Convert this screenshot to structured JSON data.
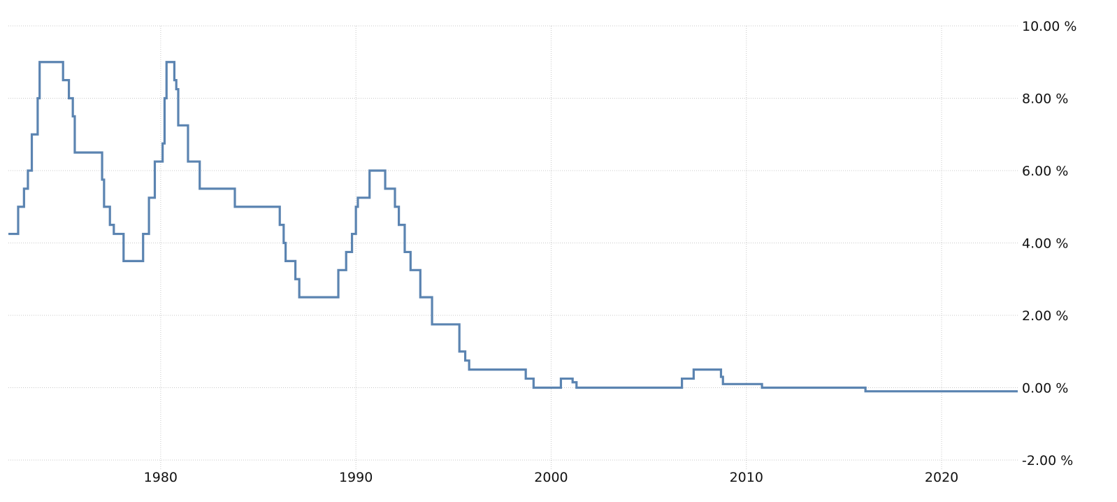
{
  "chart_data": {
    "type": "line",
    "title": "",
    "xlabel": "",
    "ylabel": "",
    "xlim": [
      1972.2,
      2023.9
    ],
    "ylim": [
      -2,
      10
    ],
    "x_ticks": [
      1980,
      1990,
      2000,
      2010,
      2020
    ],
    "x_tick_labels": [
      "1980",
      "1990",
      "2000",
      "2010",
      "2020"
    ],
    "y_ticks": [
      10,
      8,
      6,
      4,
      2,
      0,
      -2
    ],
    "y_tick_labels": [
      "10.00 %",
      "8.00 %",
      "6.00 %",
      "4.00 %",
      "2.00 %",
      "0.00 %",
      "-2.00 %"
    ],
    "grid": true,
    "legend": "none",
    "line_style": "step",
    "colors": {
      "series": "#5b84b1",
      "grid": "#c8c8c8",
      "text": "#111111"
    },
    "series": [
      {
        "values": [
          [
            1972.2,
            4.25
          ],
          [
            1972.7,
            5.0
          ],
          [
            1973.0,
            5.5
          ],
          [
            1973.2,
            6.0
          ],
          [
            1973.4,
            7.0
          ],
          [
            1973.7,
            8.0
          ],
          [
            1973.8,
            9.0
          ],
          [
            1975.0,
            8.5
          ],
          [
            1975.3,
            8.0
          ],
          [
            1975.5,
            7.5
          ],
          [
            1975.6,
            6.5
          ],
          [
            1977.0,
            5.75
          ],
          [
            1977.1,
            5.0
          ],
          [
            1977.4,
            4.5
          ],
          [
            1977.6,
            4.25
          ],
          [
            1978.1,
            3.5
          ],
          [
            1979.1,
            4.25
          ],
          [
            1979.4,
            5.25
          ],
          [
            1979.7,
            6.25
          ],
          [
            1980.1,
            6.75
          ],
          [
            1980.2,
            8.0
          ],
          [
            1980.3,
            9.0
          ],
          [
            1980.7,
            8.5
          ],
          [
            1980.8,
            8.25
          ],
          [
            1980.9,
            7.25
          ],
          [
            1981.4,
            6.25
          ],
          [
            1982.0,
            5.5
          ],
          [
            1983.8,
            5.0
          ],
          [
            1986.1,
            4.5
          ],
          [
            1986.3,
            4.0
          ],
          [
            1986.4,
            3.5
          ],
          [
            1986.9,
            3.0
          ],
          [
            1987.1,
            2.5
          ],
          [
            1989.1,
            3.25
          ],
          [
            1989.5,
            3.75
          ],
          [
            1989.8,
            4.25
          ],
          [
            1990.0,
            5.0
          ],
          [
            1990.1,
            5.25
          ],
          [
            1990.7,
            6.0
          ],
          [
            1991.5,
            5.5
          ],
          [
            1992.0,
            5.0
          ],
          [
            1992.2,
            4.5
          ],
          [
            1992.5,
            3.75
          ],
          [
            1992.8,
            3.25
          ],
          [
            1993.3,
            2.5
          ],
          [
            1993.9,
            1.75
          ],
          [
            1995.3,
            1.0
          ],
          [
            1995.6,
            0.75
          ],
          [
            1995.8,
            0.5
          ],
          [
            1998.7,
            0.25
          ],
          [
            1999.1,
            0.0
          ],
          [
            2000.5,
            0.25
          ],
          [
            2001.1,
            0.15
          ],
          [
            2001.3,
            0.0
          ],
          [
            2006.7,
            0.25
          ],
          [
            2007.3,
            0.5
          ],
          [
            2008.7,
            0.3
          ],
          [
            2008.8,
            0.1
          ],
          [
            2010.8,
            0.0
          ],
          [
            2016.1,
            -0.1
          ],
          [
            2023.9,
            -0.1
          ]
        ]
      }
    ]
  }
}
